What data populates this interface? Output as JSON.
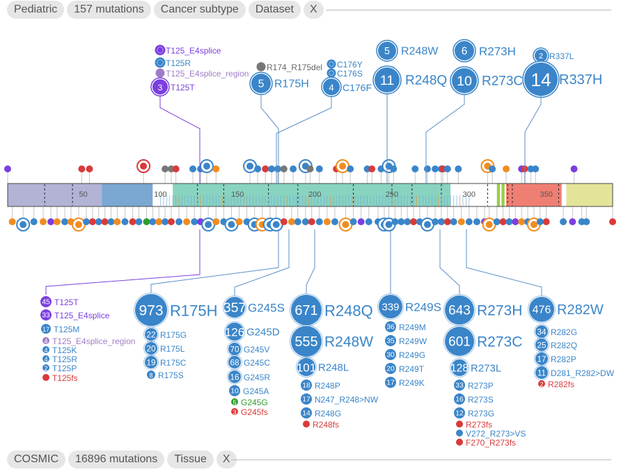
{
  "top_bar": {
    "chips": [
      "Pediatric",
      "157 mutations",
      "Cancer subtype",
      "Dataset"
    ],
    "close": "X"
  },
  "bottom_bar": {
    "chips": [
      "COSMIC",
      "16896 mutations",
      "Tissue"
    ],
    "close": "X"
  },
  "colors": {
    "missense": "#3a85c9",
    "truncating": "#d93a3a",
    "inframe": "#7b3fe0",
    "splice": "#a07cc8",
    "silent": "#2f9c2f",
    "other": "#777777",
    "fusion": "#f28c1e"
  },
  "axis": {
    "min": 1,
    "max": 393,
    "ticks": [
      50,
      100,
      150,
      200,
      250,
      300,
      350
    ]
  },
  "domains": [
    {
      "start": 1,
      "end": 62,
      "color": "#b3b3d6"
    },
    {
      "start": 62,
      "end": 95,
      "color": "#7aa8d2"
    },
    {
      "start": 95,
      "end": 108,
      "color": "#ffffff"
    },
    {
      "start": 108,
      "end": 288,
      "color": "#89d3c1"
    },
    {
      "start": 288,
      "end": 318,
      "color": "#ffffff"
    },
    {
      "start": 318,
      "end": 320,
      "color": "#9ccc4a"
    },
    {
      "start": 320,
      "end": 321,
      "color": "#ffffff"
    },
    {
      "start": 321,
      "end": 323,
      "color": "#9ccc4a"
    },
    {
      "start": 323,
      "end": 324,
      "color": "#ffffff"
    },
    {
      "start": 324,
      "end": 360,
      "color": "#f07f73"
    },
    {
      "start": 360,
      "end": 363,
      "color": "#ffffff"
    },
    {
      "start": 363,
      "end": 393,
      "color": "#e4e39a"
    }
  ],
  "dashed_positions": [
    25,
    43,
    124,
    141,
    170,
    189,
    225,
    250,
    263,
    282,
    312,
    325,
    328,
    358
  ],
  "top_labels": [
    {
      "name": "T125_E4splice",
      "type": "inframe",
      "count": ""
    },
    {
      "name": "T125R",
      "type": "missense",
      "count": ""
    },
    {
      "name": "T125_E4splice_region",
      "type": "splice",
      "count": ""
    },
    {
      "name": "T125T",
      "type": "inframe",
      "count": "3"
    },
    {
      "name": "R174_R175del",
      "type": "other",
      "count": ""
    },
    {
      "name": "R175H",
      "type": "missense",
      "count": "5"
    },
    {
      "name": "C176Y",
      "type": "missense",
      "count": ""
    },
    {
      "name": "C176S",
      "type": "missense",
      "count": ""
    },
    {
      "name": "C176F",
      "type": "missense",
      "count": "4"
    },
    {
      "name": "R248W",
      "type": "missense",
      "count": "5"
    },
    {
      "name": "R248Q",
      "type": "missense",
      "count": "11"
    },
    {
      "name": "R273H",
      "type": "missense",
      "count": "6"
    },
    {
      "name": "R273C",
      "type": "missense",
      "count": "10"
    },
    {
      "name": "R337L",
      "type": "missense",
      "count": "2"
    },
    {
      "name": "R337H",
      "type": "missense",
      "count": "14"
    }
  ],
  "bottom_groups": [
    {
      "items": [
        {
          "name": "T125T",
          "count": "45",
          "type": "inframe"
        },
        {
          "name": "T125_E4splice",
          "count": "33",
          "type": "inframe"
        },
        {
          "name": "T125M",
          "count": "17",
          "type": "missense"
        },
        {
          "name": "T125_E4splice_region",
          "count": "4",
          "type": "splice"
        },
        {
          "name": "T125K",
          "count": "4",
          "type": "missense"
        },
        {
          "name": "T125R",
          "count": "4",
          "type": "missense"
        },
        {
          "name": "T125P",
          "count": "2",
          "type": "missense"
        },
        {
          "name": "T125fs",
          "count": "",
          "type": "truncating"
        }
      ]
    },
    {
      "items": [
        {
          "name": "R175H",
          "count": "973",
          "type": "missense"
        },
        {
          "name": "R175G",
          "count": "22",
          "type": "missense"
        },
        {
          "name": "R175L",
          "count": "20",
          "type": "missense"
        },
        {
          "name": "R175C",
          "count": "19",
          "type": "missense"
        },
        {
          "name": "R175S",
          "count": "8",
          "type": "missense"
        }
      ]
    },
    {
      "items": [
        {
          "name": "G245S",
          "count": "357",
          "type": "missense"
        },
        {
          "name": "G245D",
          "count": "126",
          "type": "missense"
        },
        {
          "name": "G245V",
          "count": "70",
          "type": "missense"
        },
        {
          "name": "G245C",
          "count": "68",
          "type": "missense"
        },
        {
          "name": "G245R",
          "count": "16",
          "type": "missense"
        },
        {
          "name": "G245A",
          "count": "10",
          "type": "missense"
        },
        {
          "name": "G245G",
          "count": "5",
          "type": "silent"
        },
        {
          "name": "G245fs",
          "count": "3",
          "type": "truncating"
        }
      ]
    },
    {
      "items": [
        {
          "name": "R248Q",
          "count": "671",
          "type": "missense"
        },
        {
          "name": "R248W",
          "count": "555",
          "type": "missense"
        },
        {
          "name": "R248L",
          "count": "101",
          "type": "missense"
        },
        {
          "name": "R248P",
          "count": "18",
          "type": "missense"
        },
        {
          "name": "N247_R248>NW",
          "count": "17",
          "type": "missense"
        },
        {
          "name": "R248G",
          "count": "14",
          "type": "missense"
        },
        {
          "name": "R248fs",
          "count": "",
          "type": "truncating"
        }
      ]
    },
    {
      "items": [
        {
          "name": "R249S",
          "count": "339",
          "type": "missense"
        },
        {
          "name": "R249M",
          "count": "36",
          "type": "missense"
        },
        {
          "name": "R249W",
          "count": "35",
          "type": "missense"
        },
        {
          "name": "R249G",
          "count": "30",
          "type": "missense"
        },
        {
          "name": "R249T",
          "count": "20",
          "type": "missense"
        },
        {
          "name": "R249K",
          "count": "17",
          "type": "missense"
        }
      ]
    },
    {
      "items": [
        {
          "name": "R273H",
          "count": "643",
          "type": "missense"
        },
        {
          "name": "R273C",
          "count": "601",
          "type": "missense"
        },
        {
          "name": "R273L",
          "count": "128",
          "type": "missense"
        },
        {
          "name": "R273P",
          "count": "33",
          "type": "missense"
        },
        {
          "name": "R273S",
          "count": "16",
          "type": "missense"
        },
        {
          "name": "R273G",
          "count": "12",
          "type": "missense"
        },
        {
          "name": "R273fs",
          "count": "",
          "type": "truncating"
        },
        {
          "name": "V272_R273>VS",
          "count": "",
          "type": "missense"
        },
        {
          "name": "F270_R273fs",
          "count": "",
          "type": "truncating"
        }
      ]
    },
    {
      "items": [
        {
          "name": "R282W",
          "count": "476",
          "type": "missense"
        },
        {
          "name": "R282G",
          "count": "34",
          "type": "missense"
        },
        {
          "name": "R282Q",
          "count": "25",
          "type": "missense"
        },
        {
          "name": "R282P",
          "count": "17",
          "type": "missense"
        },
        {
          "name": "D281_R282>DW",
          "count": "11",
          "type": "missense"
        },
        {
          "name": "R282fs",
          "count": "2",
          "type": "truncating"
        }
      ]
    }
  ],
  "top_lollipops": [
    {
      "pos": 1,
      "type": "inframe"
    },
    {
      "pos": 49,
      "type": "truncating"
    },
    {
      "pos": 54,
      "type": "truncating"
    },
    {
      "pos": 89,
      "type": "truncating",
      "big": true
    },
    {
      "pos": 103,
      "type": "other"
    },
    {
      "pos": 107,
      "type": "other"
    },
    {
      "pos": 110,
      "type": "truncating"
    },
    {
      "pos": 121,
      "type": "missense"
    },
    {
      "pos": 126,
      "type": "missense"
    },
    {
      "pos": 130,
      "type": "missense",
      "big": true
    },
    {
      "pos": 136,
      "type": "fusion"
    },
    {
      "pos": 158,
      "type": "missense",
      "big": true
    },
    {
      "pos": 163,
      "type": "missense"
    },
    {
      "pos": 168,
      "type": "truncating"
    },
    {
      "pos": 172,
      "type": "missense"
    },
    {
      "pos": 176,
      "type": "missense"
    },
    {
      "pos": 180,
      "type": "other"
    },
    {
      "pos": 186,
      "type": "missense"
    },
    {
      "pos": 194,
      "type": "missense",
      "big": true
    },
    {
      "pos": 197,
      "type": "other"
    },
    {
      "pos": 203,
      "type": "missense"
    },
    {
      "pos": 214,
      "type": "truncating"
    },
    {
      "pos": 218,
      "type": "fusion",
      "big": true
    },
    {
      "pos": 223,
      "type": "missense"
    },
    {
      "pos": 234,
      "type": "missense"
    },
    {
      "pos": 237,
      "type": "truncating"
    },
    {
      "pos": 243,
      "type": "missense"
    },
    {
      "pos": 248,
      "type": "missense",
      "big": true
    },
    {
      "pos": 251,
      "type": "missense"
    },
    {
      "pos": 265,
      "type": "missense"
    },
    {
      "pos": 273,
      "type": "missense"
    },
    {
      "pos": 278,
      "type": "missense"
    },
    {
      "pos": 282,
      "type": "missense"
    },
    {
      "pos": 283,
      "type": "truncating"
    },
    {
      "pos": 286,
      "type": "missense"
    },
    {
      "pos": 293,
      "type": "missense"
    },
    {
      "pos": 312,
      "type": "fusion",
      "big": true
    },
    {
      "pos": 315,
      "type": "missense"
    },
    {
      "pos": 324,
      "type": "fusion"
    },
    {
      "pos": 334,
      "type": "inframe"
    },
    {
      "pos": 336,
      "type": "truncating"
    },
    {
      "pos": 340,
      "type": "missense"
    },
    {
      "pos": 343,
      "type": "missense"
    },
    {
      "pos": 368,
      "type": "inframe"
    }
  ],
  "bottom_lollipops": [
    {
      "pos": 4,
      "type": "fusion"
    },
    {
      "pos": 11,
      "type": "missense",
      "big": true
    },
    {
      "pos": 18,
      "type": "missense"
    },
    {
      "pos": 24,
      "type": "fusion"
    },
    {
      "pos": 29,
      "type": "inframe"
    },
    {
      "pos": 33,
      "type": "fusion"
    },
    {
      "pos": 38,
      "type": "missense"
    },
    {
      "pos": 42,
      "type": "fusion"
    },
    {
      "pos": 47,
      "type": "fusion",
      "big": true
    },
    {
      "pos": 52,
      "type": "missense"
    },
    {
      "pos": 56,
      "type": "truncating"
    },
    {
      "pos": 60,
      "type": "missense"
    },
    {
      "pos": 64,
      "type": "truncating"
    },
    {
      "pos": 68,
      "type": "missense"
    },
    {
      "pos": 72,
      "type": "fusion"
    },
    {
      "pos": 77,
      "type": "missense"
    },
    {
      "pos": 82,
      "type": "truncating"
    },
    {
      "pos": 86,
      "type": "missense"
    },
    {
      "pos": 91,
      "type": "silent"
    },
    {
      "pos": 95,
      "type": "missense"
    },
    {
      "pos": 99,
      "type": "fusion"
    },
    {
      "pos": 103,
      "type": "missense"
    },
    {
      "pos": 107,
      "type": "truncating"
    },
    {
      "pos": 112,
      "type": "missense"
    },
    {
      "pos": 117,
      "type": "fusion"
    },
    {
      "pos": 122,
      "type": "missense"
    },
    {
      "pos": 126,
      "type": "inframe"
    },
    {
      "pos": 131,
      "type": "missense",
      "big": true
    },
    {
      "pos": 136,
      "type": "fusion"
    },
    {
      "pos": 141,
      "type": "missense"
    },
    {
      "pos": 146,
      "type": "missense",
      "big": true
    },
    {
      "pos": 151,
      "type": "fusion"
    },
    {
      "pos": 156,
      "type": "missense"
    },
    {
      "pos": 161,
      "type": "missense",
      "big": true
    },
    {
      "pos": 166,
      "type": "fusion",
      "big": true
    },
    {
      "pos": 171,
      "type": "missense",
      "big": true
    },
    {
      "pos": 175,
      "type": "missense",
      "big": true
    },
    {
      "pos": 180,
      "type": "truncating"
    },
    {
      "pos": 185,
      "type": "fusion"
    },
    {
      "pos": 189,
      "type": "missense"
    },
    {
      "pos": 194,
      "type": "missense"
    },
    {
      "pos": 198,
      "type": "truncating"
    },
    {
      "pos": 203,
      "type": "missense"
    },
    {
      "pos": 208,
      "type": "fusion"
    },
    {
      "pos": 213,
      "type": "missense"
    },
    {
      "pos": 220,
      "type": "fusion",
      "big": true
    },
    {
      "pos": 225,
      "type": "missense"
    },
    {
      "pos": 230,
      "type": "inframe"
    },
    {
      "pos": 235,
      "type": "missense"
    },
    {
      "pos": 241,
      "type": "missense"
    },
    {
      "pos": 245,
      "type": "missense",
      "big": true
    },
    {
      "pos": 248,
      "type": "missense",
      "big": true
    },
    {
      "pos": 252,
      "type": "missense"
    },
    {
      "pos": 256,
      "type": "missense"
    },
    {
      "pos": 260,
      "type": "missense"
    },
    {
      "pos": 264,
      "type": "truncating"
    },
    {
      "pos": 268,
      "type": "missense"
    },
    {
      "pos": 273,
      "type": "missense",
      "big": true
    },
    {
      "pos": 278,
      "type": "missense"
    },
    {
      "pos": 282,
      "type": "missense"
    },
    {
      "pos": 286,
      "type": "truncating"
    },
    {
      "pos": 290,
      "type": "missense"
    },
    {
      "pos": 295,
      "type": "fusion"
    },
    {
      "pos": 300,
      "type": "missense"
    },
    {
      "pos": 305,
      "type": "missense"
    },
    {
      "pos": 310,
      "type": "inframe"
    },
    {
      "pos": 313,
      "type": "fusion",
      "big": true
    },
    {
      "pos": 318,
      "type": "missense"
    },
    {
      "pos": 322,
      "type": "truncating"
    },
    {
      "pos": 326,
      "type": "missense"
    },
    {
      "pos": 330,
      "type": "inframe"
    },
    {
      "pos": 334,
      "type": "fusion"
    },
    {
      "pos": 338,
      "type": "missense"
    },
    {
      "pos": 342,
      "type": "fusion",
      "big": true
    },
    {
      "pos": 346,
      "type": "missense"
    },
    {
      "pos": 350,
      "type": "truncating"
    },
    {
      "pos": 361,
      "type": "missense"
    },
    {
      "pos": 367,
      "type": "inframe"
    },
    {
      "pos": 373,
      "type": "missense"
    },
    {
      "pos": 376,
      "type": "missense"
    },
    {
      "pos": 393,
      "type": "truncating"
    }
  ]
}
